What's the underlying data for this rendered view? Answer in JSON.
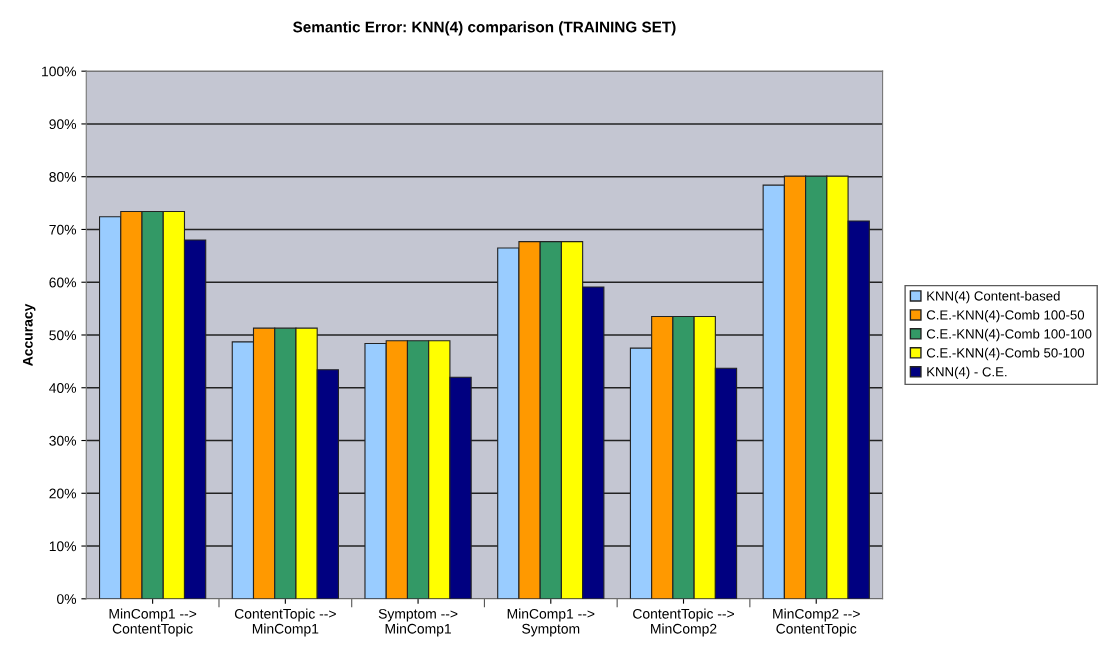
{
  "chart_data": {
    "type": "bar",
    "title": "Semantic Error: KNN(4) comparison (TRAINING SET)",
    "ylabel": "Accuracy",
    "categories": [
      "MinComp1 -->\nContentTopic",
      "ContentTopic -->\nMinComp1",
      "Symptom -->\nMinComp1",
      "MinComp1 -->\nSymptom",
      "ContentTopic -->\nMinComp2",
      "MinComp2 -->\nContentTopic"
    ],
    "series": [
      {
        "name": "KNN(4) Content-based",
        "color": "#99ccff",
        "values": [
          72.4,
          48.7,
          48.4,
          66.5,
          47.5,
          78.4
        ]
      },
      {
        "name": "C.E.-KNN(4)-Comb 100-50",
        "color": "#ff9900",
        "values": [
          73.4,
          51.3,
          48.9,
          67.7,
          53.5,
          80.1
        ]
      },
      {
        "name": "C.E.-KNN(4)-Comb 100-100",
        "color": "#339966",
        "values": [
          73.4,
          51.3,
          48.9,
          67.7,
          53.5,
          80.1
        ]
      },
      {
        "name": "C.E.-KNN(4)-Comb 50-100",
        "color": "#ffff00",
        "values": [
          73.4,
          51.3,
          48.9,
          67.7,
          53.5,
          80.1
        ]
      },
      {
        "name": "KNN(4) - C.E.",
        "color": "#000080",
        "values": [
          68.0,
          43.4,
          42.0,
          59.1,
          43.7,
          71.6
        ]
      }
    ],
    "ylim": [
      0,
      100
    ],
    "yticks": [
      {
        "value": 0,
        "label": "0%"
      },
      {
        "value": 10,
        "label": "10%"
      },
      {
        "value": 20,
        "label": "20%"
      },
      {
        "value": 30,
        "label": "30%"
      },
      {
        "value": 40,
        "label": "40%"
      },
      {
        "value": 50,
        "label": "50%"
      },
      {
        "value": 60,
        "label": "60%"
      },
      {
        "value": 70,
        "label": "70%"
      },
      {
        "value": 80,
        "label": "80%"
      },
      {
        "value": 90,
        "label": "90%"
      },
      {
        "value": 100,
        "label": "100%"
      }
    ],
    "grid": "y",
    "legend": "right"
  }
}
